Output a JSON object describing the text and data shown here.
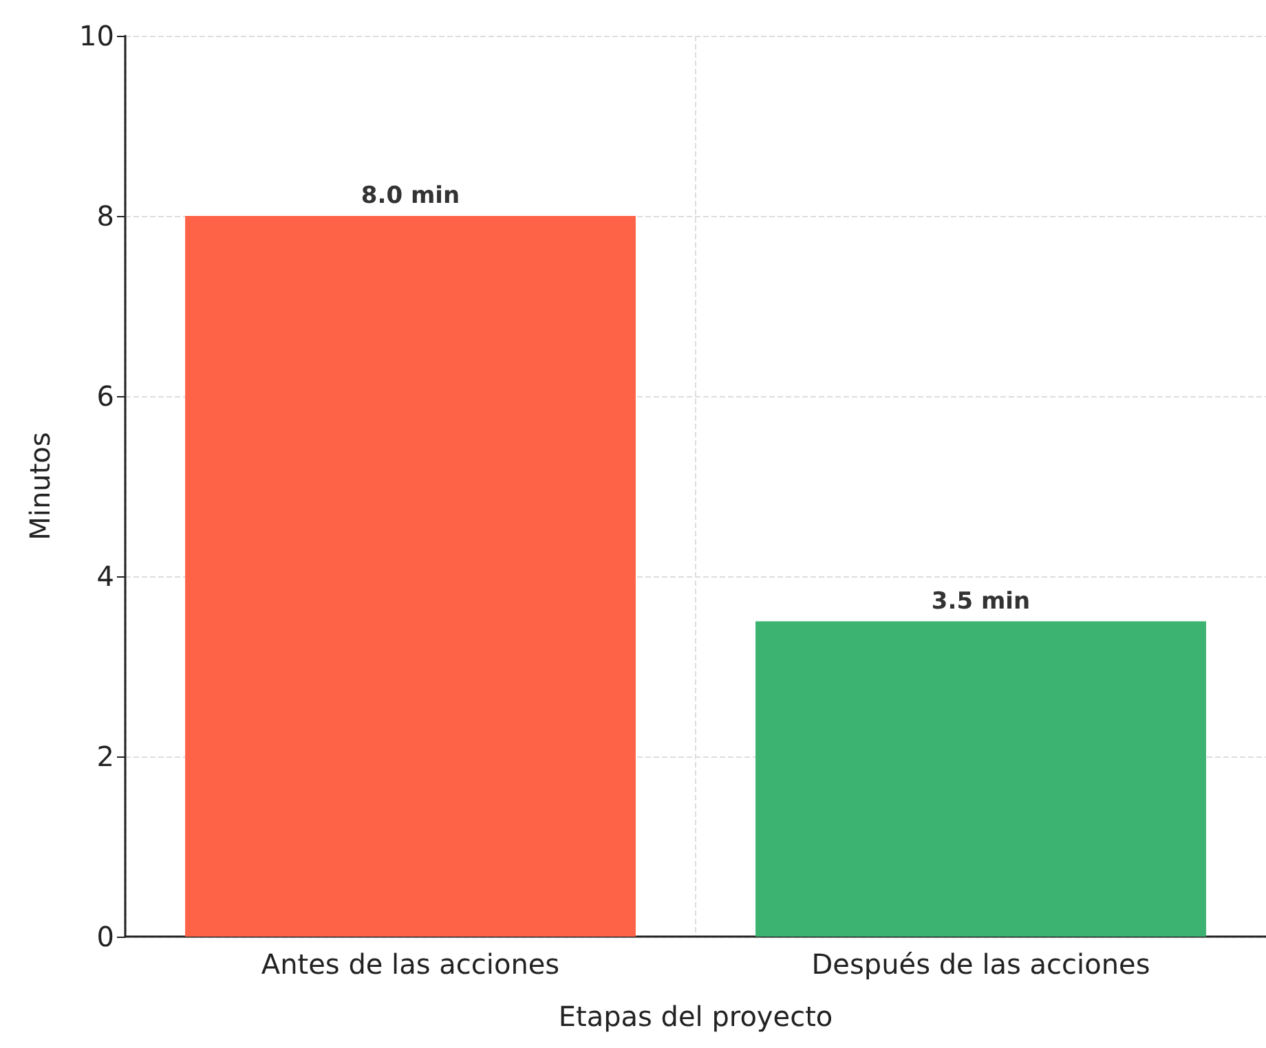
{
  "chart_data": {
    "type": "bar",
    "xlabel": "Etapas del proyecto",
    "ylabel": "Minutos",
    "categories": [
      "Antes de las acciones",
      "Después de las acciones"
    ],
    "values": [
      8.0,
      3.5
    ],
    "colors": [
      "#ff6347",
      "#3cb371"
    ],
    "value_labels": [
      "8.0 min",
      "3.5 min"
    ],
    "ylim": [
      0,
      10
    ],
    "yticks": [
      0,
      2,
      4,
      6,
      8,
      10
    ],
    "grid": true
  }
}
